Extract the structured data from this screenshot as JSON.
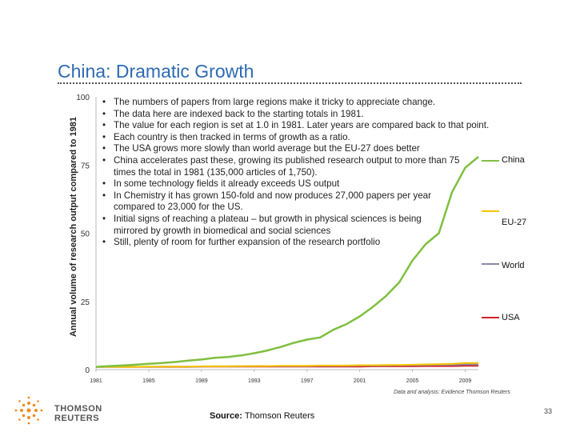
{
  "slide": {
    "title": "China: Dramatic Growth",
    "source_label": "Source:",
    "source_value": "Thomson Reuters",
    "page_number": "33",
    "credit": "Data and analysis: Evidence Thomson Reuters",
    "logo_text": "THOMSON REUTERS"
  },
  "bullets": [
    "The numbers of papers from  large regions make it tricky to appreciate change.",
    "The data here are indexed back to the starting totals in 1981.",
    "The value for each region is set at 1.0 in 1981.  Later years are compared back to that point.",
    "Each country is then tracked in terms of growth as a ratio.",
    "The USA grows more slowly than world average but the EU-27 does better",
    "China accelerates past these, growing its published research output to more than 75 times the total in 1981 (135,000 articles of 1,750).",
    "In some technology fields it already exceeds US output",
    "In Chemistry it has grown 150-fold and now produces 27,000 papers per year compared to 23,000 for the US.",
    "Initial signs of reaching a plateau – but growth in physical sciences is being mirrored by growth in biomedical and social sciences",
    "Still, plenty of room for further expansion of the research portfolio"
  ],
  "chart_data": {
    "type": "line",
    "ylabel": "Annual volume of research output compared to 1981",
    "xlabel": "",
    "ylim": [
      0,
      100
    ],
    "yticks": [
      "0",
      "25",
      "50",
      "75",
      "100"
    ],
    "xticks": [
      "1981",
      "1985",
      "1989",
      "1993",
      "1997",
      "2001",
      "2005",
      "2009"
    ],
    "x": [
      1981,
      1982,
      1983,
      1984,
      1985,
      1986,
      1987,
      1988,
      1989,
      1990,
      1991,
      1992,
      1993,
      1994,
      1995,
      1996,
      1997,
      1998,
      1999,
      2000,
      2001,
      2002,
      2003,
      2004,
      2005,
      2006,
      2007,
      2008,
      2009,
      2010
    ],
    "series": [
      {
        "name": "China",
        "color": "#7fbf3f",
        "values": [
          1,
          1.3,
          1.5,
          1.8,
          2.1,
          2.4,
          2.8,
          3.3,
          3.7,
          4.3,
          4.6,
          5.2,
          6,
          7,
          8.3,
          9.8,
          11,
          11.8,
          14.6,
          16.7,
          19.5,
          23,
          27,
          32,
          40,
          46,
          50,
          65,
          74,
          78
        ]
      },
      {
        "name": "EU-27",
        "color": "#f5c400",
        "values": [
          1,
          1,
          1,
          1,
          1.1,
          1.1,
          1.1,
          1.1,
          1.2,
          1.2,
          1.2,
          1.3,
          1.3,
          1.3,
          1.4,
          1.4,
          1.4,
          1.5,
          1.5,
          1.5,
          1.6,
          1.6,
          1.7,
          1.7,
          1.8,
          1.9,
          2,
          2.1,
          2.4,
          2.4
        ]
      },
      {
        "name": "World",
        "color": "#8a8aa8",
        "values": [
          1,
          1,
          1,
          1,
          1,
          1.1,
          1.1,
          1.1,
          1.1,
          1.2,
          1.2,
          1.2,
          1.3,
          1.3,
          1.3,
          1.3,
          1.3,
          1.4,
          1.4,
          1.4,
          1.5,
          1.5,
          1.5,
          1.6,
          1.6,
          1.7,
          1.8,
          1.8,
          1.9,
          2.0
        ]
      },
      {
        "name": "USA",
        "color": "#d0202a",
        "values": [
          1,
          1,
          1,
          1,
          1,
          1,
          1,
          1,
          1.1,
          1.1,
          1.1,
          1.1,
          1.1,
          1.1,
          1.1,
          1.1,
          1.1,
          1.1,
          1.1,
          1.1,
          1.1,
          1.2,
          1.2,
          1.2,
          1.2,
          1.3,
          1.3,
          1.3,
          1.4,
          1.4
        ]
      }
    ],
    "grid": false,
    "legend": "right"
  }
}
